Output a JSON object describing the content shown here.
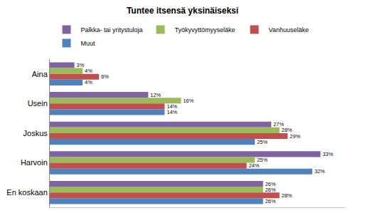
{
  "chart_data": {
    "type": "bar",
    "title": "Tuntee itsensä yksinäiseksi",
    "orientation": "horizontal",
    "categories": [
      "Aina",
      "Usein",
      "Joskus",
      "Harvoin",
      "En koskaan"
    ],
    "series": [
      {
        "name": "Palkka- tai yritystuloja",
        "color": "#8064A2",
        "values": [
          3,
          12,
          27,
          33,
          26
        ],
        "value_labels": [
          "3%",
          "12%",
          "27%",
          "33%",
          "26%"
        ]
      },
      {
        "name": "Työkyvyttömyyseläke",
        "color": "#9BBB59",
        "values": [
          4,
          16,
          28,
          25,
          26
        ],
        "value_labels": [
          "4%",
          "16%",
          "28%",
          "25%",
          "26%"
        ]
      },
      {
        "name": "Vanhuuseläke",
        "color": "#C0504D",
        "values": [
          6,
          14,
          29,
          24,
          28
        ],
        "value_labels": [
          "6%",
          "14%",
          "29%",
          "24%",
          "28%"
        ]
      },
      {
        "name": "Muut",
        "color": "#4F81BD",
        "values": [
          4,
          14,
          25,
          32,
          26
        ],
        "value_labels": [
          "4%",
          "14%",
          "25%",
          "32%",
          "26%"
        ]
      }
    ],
    "xlim": [
      0,
      36
    ],
    "data_labels": true,
    "tick_labels": "y",
    "legend": "top",
    "grid": false
  }
}
